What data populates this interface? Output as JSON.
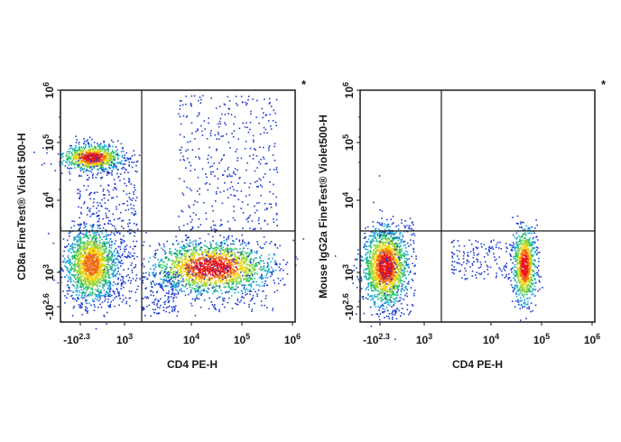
{
  "chart_data": [
    {
      "type": "scatter",
      "title": "",
      "xlabel": "CD4 PE-H",
      "ylabel": "CD8a  FineTest® Violet 500-H",
      "x_scale": "biexponential",
      "y_scale": "biexponential",
      "x_ticks": [
        {
          "base": "-10",
          "exp": "2.3"
        },
        {
          "base": "10",
          "exp": "3"
        },
        {
          "base": "10",
          "exp": "4"
        },
        {
          "base": "10",
          "exp": "5"
        },
        {
          "base": "10",
          "exp": "6"
        }
      ],
      "y_ticks": [
        {
          "base": "-10",
          "exp": "2.6"
        },
        {
          "base": "10",
          "exp": "3"
        },
        {
          "base": "10",
          "exp": "4"
        },
        {
          "base": "10",
          "exp": "5"
        },
        {
          "base": "10",
          "exp": "6"
        }
      ],
      "gate_x": 1800,
      "gate_y": 3000,
      "corner_mark": "*",
      "populations": [
        {
          "name": "CD4-CD8+",
          "x": 400,
          "y": 70000
        },
        {
          "name": "CD4-CD8-",
          "x": 380,
          "y": 1000
        },
        {
          "name": "CD4+CD8-",
          "x": 30000,
          "y": 1000
        },
        {
          "name": "CD4+CD8+ sparse",
          "x": 30000,
          "y": 20000
        }
      ],
      "grid": false,
      "color_scale": "density (blue-green-yellow-red)"
    },
    {
      "type": "scatter",
      "title": "",
      "xlabel": "CD4 PE-H",
      "ylabel": "Mouse IgG2a  FineTest® Violet500-H",
      "x_scale": "biexponential",
      "y_scale": "biexponential",
      "x_ticks": [
        {
          "base": "-10",
          "exp": "2.3"
        },
        {
          "base": "10",
          "exp": "3"
        },
        {
          "base": "10",
          "exp": "4"
        },
        {
          "base": "10",
          "exp": "5"
        },
        {
          "base": "10",
          "exp": "6"
        }
      ],
      "y_ticks": [
        {
          "base": "-10",
          "exp": "2.6"
        },
        {
          "base": "10",
          "exp": "3"
        },
        {
          "base": "10",
          "exp": "4"
        },
        {
          "base": "10",
          "exp": "5"
        },
        {
          "base": "10",
          "exp": "6"
        }
      ],
      "gate_x": 1800,
      "gate_y": 3000,
      "corner_mark": "*",
      "populations": [
        {
          "name": "CD4- isotype",
          "x": 380,
          "y": 1000
        },
        {
          "name": "intermediate",
          "x": 8000,
          "y": 1200
        },
        {
          "name": "CD4+ isotype",
          "x": 65000,
          "y": 1000
        }
      ],
      "grid": false,
      "color_scale": "density (blue-green-yellow-red)"
    }
  ]
}
